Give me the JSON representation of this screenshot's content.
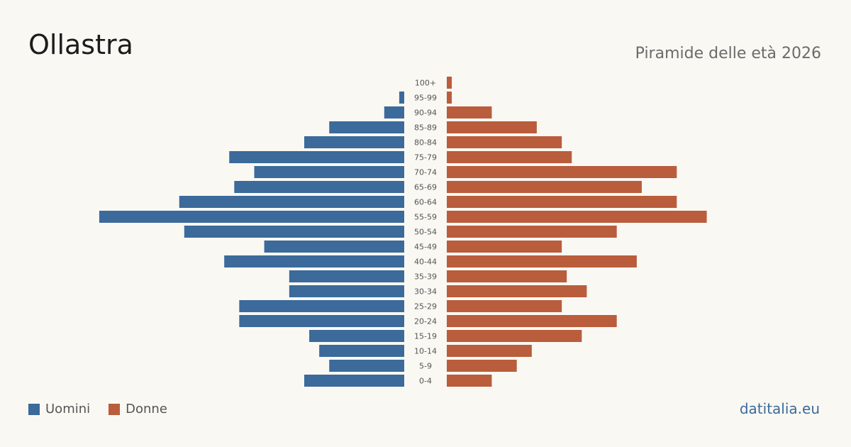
{
  "header": {
    "title": "Ollastra",
    "subtitle": "Piramide delle età 2026"
  },
  "footer": {
    "brand": "datitalia.eu"
  },
  "colors": {
    "male": "#3b6a9b",
    "female": "#b95d3c",
    "brand": "#3b6a9b"
  },
  "chart_data": {
    "type": "bar",
    "orientation": "horizontal-pyramid",
    "categories": [
      "100+",
      "95-99",
      "90-94",
      "85-89",
      "80-84",
      "75-79",
      "70-74",
      "65-69",
      "60-64",
      "55-59",
      "50-54",
      "45-49",
      "40-44",
      "35-39",
      "30-34",
      "25-29",
      "20-24",
      "15-19",
      "10-14",
      "5-9",
      "0-4"
    ],
    "series": [
      {
        "name": "Uomini",
        "values": [
          0,
          1,
          4,
          15,
          20,
          35,
          30,
          34,
          45,
          61,
          44,
          28,
          36,
          23,
          23,
          33,
          33,
          19,
          17,
          15,
          20
        ]
      },
      {
        "name": "Donne",
        "values": [
          1,
          1,
          9,
          18,
          23,
          25,
          46,
          39,
          46,
          52,
          34,
          23,
          38,
          24,
          28,
          23,
          34,
          27,
          17,
          14,
          9
        ]
      }
    ],
    "legend": "bottom-left",
    "grid": false
  }
}
